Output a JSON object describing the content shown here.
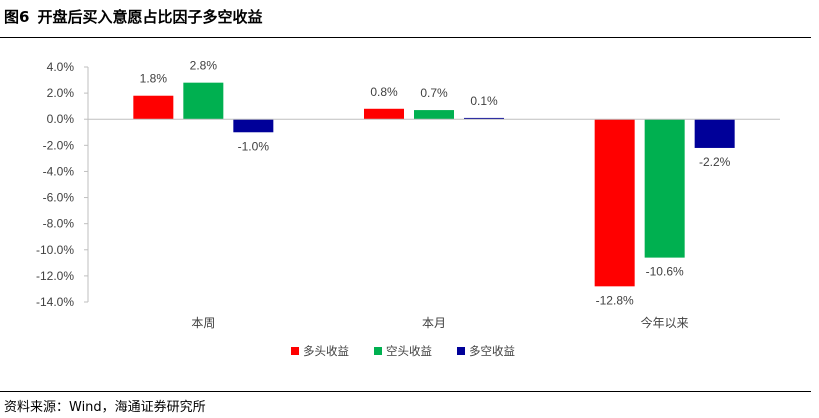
{
  "header": {
    "figure_number": "图6",
    "title": "开盘后买入意愿占比因子多空收益"
  },
  "source": "资料来源：Wind，海通证券研究所",
  "colors": {
    "long": "#FF0000",
    "short": "#00B050",
    "long_short": "#000099"
  },
  "chart_data": {
    "type": "bar",
    "categories": [
      "本周",
      "本月",
      "今年以来"
    ],
    "series": [
      {
        "name": "多头收益",
        "values": [
          1.8,
          0.8,
          -12.8
        ],
        "labels": [
          "1.8%",
          "0.8%",
          "-12.8%"
        ]
      },
      {
        "name": "空头收益",
        "values": [
          2.8,
          0.7,
          -10.6
        ],
        "labels": [
          "2.8%",
          "0.7%",
          "-10.6%"
        ]
      },
      {
        "name": "多空收益",
        "values": [
          -1.0,
          0.1,
          -2.2
        ],
        "labels": [
          "-1.0%",
          "0.1%",
          "-2.2%"
        ]
      }
    ],
    "y_ticks": [
      4,
      2,
      0,
      -2,
      -4,
      -6,
      -8,
      -10,
      -12,
      -14
    ],
    "y_tick_labels": [
      "4.0%",
      "2.0%",
      "0.0%",
      "-2.0%",
      "-4.0%",
      "-6.0%",
      "-8.0%",
      "-10.0%",
      "-12.0%",
      "-14.0%"
    ],
    "ylim": [
      -14,
      4
    ],
    "grid": false,
    "legend_position": "bottom"
  }
}
